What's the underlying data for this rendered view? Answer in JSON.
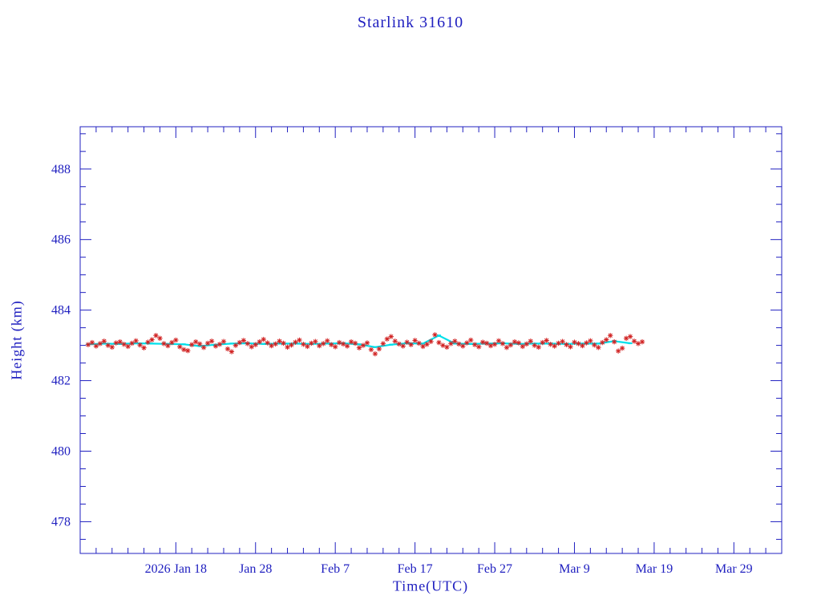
{
  "chart_data": {
    "type": "scatter",
    "title": "Starlink 31610",
    "xlabel": "Time(UTC)",
    "ylabel": "Height (km)",
    "ylim": [
      477.1,
      489.2
    ],
    "xlim_days": [
      0,
      88
    ],
    "y_ticks": [
      478,
      480,
      482,
      484,
      486,
      488
    ],
    "y_minor_step": 0.5,
    "x_minor_step": 2,
    "x_ticks": [
      {
        "day": 12,
        "label": "2026 Jan 18"
      },
      {
        "day": 22,
        "label": "Jan 28"
      },
      {
        "day": 32,
        "label": "Feb 7"
      },
      {
        "day": 42,
        "label": "Feb 17"
      },
      {
        "day": 52,
        "label": "Feb 27"
      },
      {
        "day": 62,
        "label": "Mar 9"
      },
      {
        "day": 72,
        "label": "Mar 19"
      },
      {
        "day": 82,
        "label": "Mar 29"
      }
    ],
    "grid": false,
    "legend": "none",
    "colors": {
      "axis": "#2020c0",
      "background": "#ffffff",
      "observed": "#d02020",
      "predicted": "#00e0ea"
    },
    "series": [
      {
        "name": "predicted",
        "marker": "line",
        "color_key": "predicted",
        "points": [
          [
            1,
            483.03
          ],
          [
            3,
            483.05
          ],
          [
            5,
            483.04
          ],
          [
            7,
            483.06
          ],
          [
            9,
            483.05
          ],
          [
            11,
            483.04
          ],
          [
            13,
            483.03
          ],
          [
            15,
            482.98
          ],
          [
            17,
            483.02
          ],
          [
            19,
            483.05
          ],
          [
            21,
            483.06
          ],
          [
            23,
            483.04
          ],
          [
            25,
            483.05
          ],
          [
            27,
            483.05
          ],
          [
            29,
            483.04
          ],
          [
            31,
            483.05
          ],
          [
            33,
            483.06
          ],
          [
            35,
            483.03
          ],
          [
            37,
            482.95
          ],
          [
            39,
            483.02
          ],
          [
            41,
            483.06
          ],
          [
            43,
            483.05
          ],
          [
            45,
            483.28
          ],
          [
            47,
            483.05
          ],
          [
            49,
            483.04
          ],
          [
            51,
            483.05
          ],
          [
            53,
            483.06
          ],
          [
            55,
            483.04
          ],
          [
            57,
            483.05
          ],
          [
            59,
            483.05
          ],
          [
            61,
            483.04
          ],
          [
            63,
            483.05
          ],
          [
            65,
            483.05
          ],
          [
            67,
            483.12
          ],
          [
            69,
            483.06
          ]
        ]
      },
      {
        "name": "observed",
        "marker": "asterisk",
        "color_key": "observed",
        "x_start": 1,
        "x_step": 0.5,
        "y": [
          483.02,
          483.08,
          482.98,
          483.05,
          483.12,
          483.0,
          482.95,
          483.07,
          483.1,
          483.03,
          482.97,
          483.06,
          483.13,
          483.01,
          482.93,
          483.09,
          483.16,
          483.28,
          483.2,
          483.05,
          482.99,
          483.08,
          483.15,
          482.96,
          482.88,
          482.85,
          483.02,
          483.1,
          483.04,
          482.94,
          483.06,
          483.12,
          482.98,
          483.03,
          483.11,
          482.9,
          482.82,
          483.0,
          483.08,
          483.14,
          483.05,
          482.96,
          483.02,
          483.1,
          483.17,
          483.07,
          482.99,
          483.04,
          483.12,
          483.06,
          482.95,
          483.01,
          483.09,
          483.15,
          483.03,
          482.97,
          483.06,
          483.11,
          482.99,
          483.05,
          483.13,
          483.02,
          482.96,
          483.08,
          483.04,
          482.98,
          483.1,
          483.06,
          482.93,
          483.0,
          483.07,
          482.88,
          482.76,
          482.9,
          483.05,
          483.18,
          483.25,
          483.12,
          483.04,
          482.98,
          483.09,
          483.02,
          483.14,
          483.06,
          482.97,
          483.03,
          483.11,
          483.3,
          483.08,
          483.0,
          482.95,
          483.05,
          483.12,
          483.04,
          482.98,
          483.07,
          483.15,
          483.02,
          482.96,
          483.09,
          483.06,
          482.99,
          483.03,
          483.13,
          483.05,
          482.94,
          483.01,
          483.1,
          483.07,
          482.97,
          483.04,
          483.12,
          483.0,
          482.95,
          483.08,
          483.14,
          483.03,
          482.98,
          483.06,
          483.11,
          483.02,
          482.96,
          483.09,
          483.05,
          482.99,
          483.07,
          483.13,
          483.01,
          482.94,
          483.08,
          483.16,
          483.28,
          483.1,
          482.84,
          482.92,
          483.2,
          483.25,
          483.12,
          483.05,
          483.1
        ]
      }
    ]
  }
}
